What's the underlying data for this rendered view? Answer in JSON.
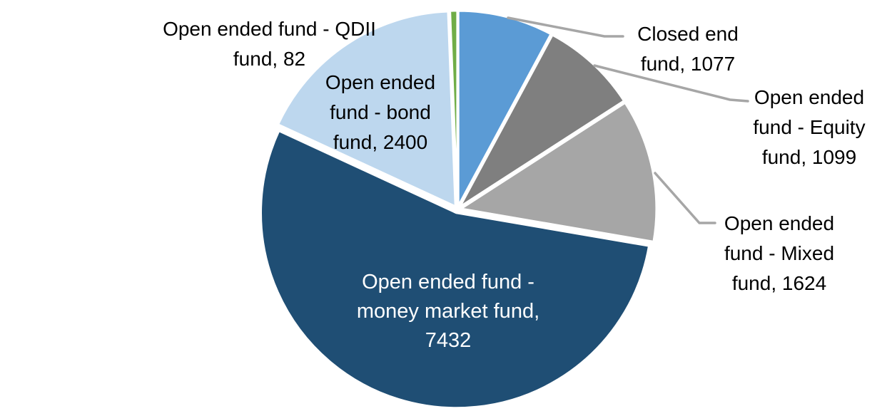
{
  "chart_data": {
    "type": "pie",
    "start_angle_deg": 0,
    "direction": "clockwise",
    "background_color": "#FFFFFF",
    "outside_label_text_color": "#000000",
    "inside_label_text_color": "#FFFFFF",
    "leader_line_color": "#A6A6A6",
    "slice_border_color": "#FFFFFF",
    "slices": [
      {
        "name": "Closed end fund",
        "value": 1077,
        "color": "#5B9BD5",
        "label_placement": "outside",
        "label_lines": [
          "Closed end",
          "fund, 1077"
        ]
      },
      {
        "name": "Open ended fund - Equity fund",
        "value": 1099,
        "color": "#7F7F7F",
        "label_placement": "outside",
        "label_lines": [
          "Open ended",
          "fund - Equity",
          "fund, 1099"
        ]
      },
      {
        "name": "Open ended fund - Mixed fund",
        "value": 1624,
        "color": "#A6A6A6",
        "label_placement": "outside",
        "label_lines": [
          "Open ended",
          "fund - Mixed",
          "fund, 1624"
        ]
      },
      {
        "name": "Open ended fund - money market fund",
        "value": 7432,
        "color": "#1F4E74",
        "label_placement": "inside",
        "label_lines": [
          "Open ended fund -",
          "money market fund,",
          "7432"
        ]
      },
      {
        "name": "Open ended fund - bond fund",
        "value": 2400,
        "color": "#BDD7EE",
        "label_placement": "outside",
        "label_lines": [
          "Open ended",
          "fund - bond",
          "fund, 2400"
        ]
      },
      {
        "name": "Open ended fund - QDII fund",
        "value": 82,
        "color": "#70AD47",
        "label_placement": "outside",
        "label_lines": [
          "Open ended fund - QDII",
          "fund, 82"
        ]
      }
    ]
  }
}
